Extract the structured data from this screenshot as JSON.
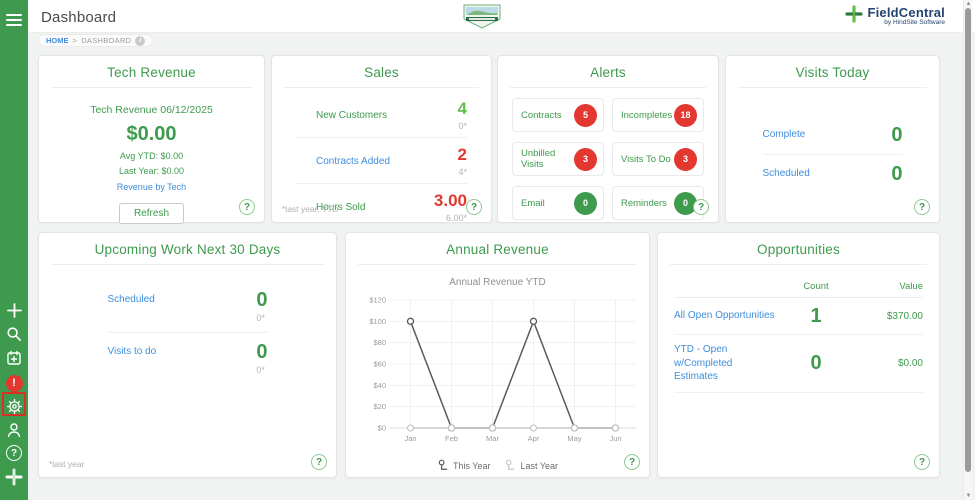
{
  "colors": {
    "brand_green": "#3e9a4d",
    "bright_green": "#62be48",
    "alert_red": "#e2382f",
    "link_blue": "#3e8ede",
    "muted_gray": "#b3b3b3",
    "navy": "#24456e"
  },
  "header": {
    "title": "Dashboard",
    "breadcrumb": {
      "home": "HOME",
      "separator": ">",
      "current": "DASHBOARD",
      "info": "i"
    },
    "brand": {
      "name": "FieldCentral",
      "tagline": "by HindSite Software"
    }
  },
  "common": {
    "help": "?"
  },
  "cards": {
    "tech_revenue": {
      "title": "Tech Revenue",
      "subtitle": "Tech Revenue 06/12/2025",
      "amount": "$0.00",
      "avg_ytd": "Avg YTD: $0.00",
      "last_year": "Last Year: $0.00",
      "link": "Revenue by Tech",
      "refresh_label": "Refresh"
    },
    "sales": {
      "title": "Sales",
      "rows": [
        {
          "label": "New Customers",
          "label_style": "lbl-green",
          "value": "4",
          "value_color": "#62be48",
          "sub": "0*"
        },
        {
          "label": "Contracts Added",
          "label_style": "lbl-blue",
          "value": "2",
          "value_color": "#e2382f",
          "sub": "4*"
        },
        {
          "label": "Hours Sold",
          "label_style": "lbl-green",
          "value": "3.00",
          "value_color": "#e2382f",
          "sub": "6.00*"
        }
      ],
      "footnote": "*last year, YTD"
    },
    "alerts": {
      "title": "Alerts",
      "tiles": [
        {
          "label": "Contracts",
          "count": "5",
          "color": "#e2382f"
        },
        {
          "label": "Incompletes",
          "count": "18",
          "color": "#e2382f"
        },
        {
          "label": "Unbilled Visits",
          "count": "3",
          "color": "#e2382f"
        },
        {
          "label": "Visits To Do",
          "count": "3",
          "color": "#e2382f"
        },
        {
          "label": "Email",
          "count": "0",
          "color": "#3e9a4d"
        },
        {
          "label": "Reminders",
          "count": "0",
          "color": "#3e9a4d"
        }
      ]
    },
    "visits_today": {
      "title": "Visits Today",
      "rows": [
        {
          "label": "Complete",
          "value": "0"
        },
        {
          "label": "Scheduled",
          "value": "0"
        }
      ]
    },
    "upcoming_work": {
      "title": "Upcoming Work Next 30 Days",
      "rows": [
        {
          "label": "Scheduled",
          "value": "0",
          "sub": "0*"
        },
        {
          "label": "Visits to do",
          "value": "0",
          "sub": "0*"
        }
      ],
      "footnote": "*last year"
    },
    "annual_revenue": {
      "title": "Annual Revenue"
    },
    "opportunities": {
      "title": "Opportunities",
      "headers": {
        "count": "Count",
        "value": "Value"
      },
      "rows": [
        {
          "label": "All Open Opportunities",
          "count": "1",
          "value": "$370.00"
        },
        {
          "label": "YTD - Open w/Completed Estimates",
          "count": "0",
          "value": "$0.00"
        }
      ]
    }
  },
  "chart_data": {
    "type": "line",
    "title": "Annual Revenue YTD",
    "x": [
      "Jan",
      "Feb",
      "Mar",
      "Apr",
      "May",
      "Jun"
    ],
    "series": [
      {
        "name": "This Year",
        "values": [
          100,
          0,
          0,
          100,
          0,
          0
        ],
        "color": "#5a5a5a"
      },
      {
        "name": "Last Year",
        "values": [
          0,
          0,
          0,
          0,
          0,
          0
        ],
        "color": "#c9c9c9"
      }
    ],
    "ylim": [
      0,
      120
    ],
    "ytick_step": 20,
    "ytick_prefix": "$",
    "grid": true,
    "legend_position": "bottom"
  }
}
